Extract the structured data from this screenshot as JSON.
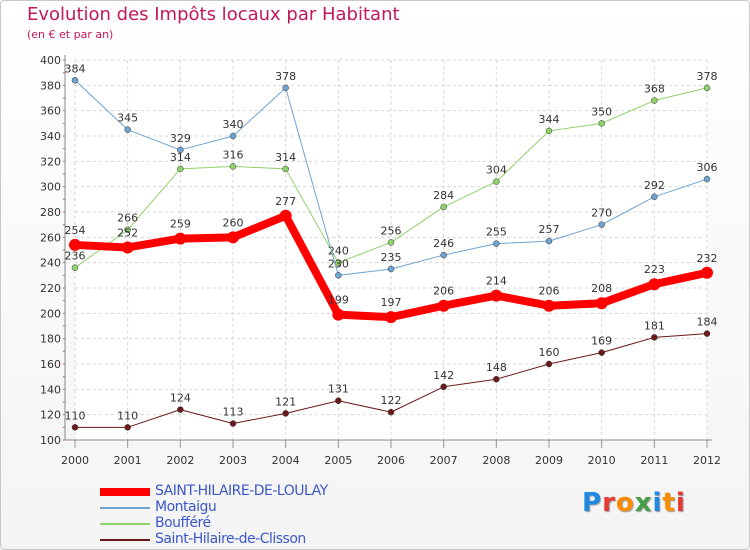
{
  "title": "Evolution des Impôts locaux par Habitant",
  "subtitle": "(en € et par an)",
  "logo": {
    "text": "Proxiti",
    "letters": [
      "P",
      "r",
      "o",
      "x",
      "i",
      "t",
      "i"
    ],
    "colors": [
      "#1e88e5",
      "#e53935",
      "#fb8c00",
      "#43a047",
      "#1e88e5",
      "#fb8c00",
      "#e53935"
    ]
  },
  "chart_data": {
    "type": "line",
    "title": "Evolution des Impôts locaux par Habitant",
    "subtitle": "(en € et par an)",
    "x": [
      "2000",
      "2001",
      "2002",
      "2003",
      "2004",
      "2005",
      "2006",
      "2007",
      "2008",
      "2009",
      "2010",
      "2011",
      "2012"
    ],
    "ylim": [
      100,
      400
    ],
    "yticks": [
      100,
      120,
      140,
      160,
      180,
      200,
      220,
      240,
      260,
      280,
      300,
      320,
      340,
      360,
      380,
      400
    ],
    "grid": true,
    "legend_position": "bottom-left",
    "series": [
      {
        "name": "Saint-Hilaire-de-Clisson",
        "color": "#6b1a1a",
        "width": 1,
        "values": [
          110,
          110,
          124,
          113,
          121,
          131,
          122,
          142,
          148,
          160,
          169,
          181,
          184
        ],
        "labels": [
          "110",
          "110",
          "124",
          "113",
          "121",
          "131",
          "122",
          "142",
          "148",
          "160",
          "169",
          "181",
          "184"
        ]
      },
      {
        "name": "Boufféré",
        "color": "#8fd16a",
        "width": 1,
        "values": [
          236,
          266,
          314,
          316,
          314,
          240,
          256,
          284,
          304,
          344,
          350,
          368,
          378
        ],
        "labels": [
          "236",
          "266",
          "314",
          "316",
          "314",
          "240",
          "256",
          "284",
          "304",
          "344",
          "350",
          "368",
          "378"
        ]
      },
      {
        "name": "Montaigu",
        "color": "#6fa3d0",
        "width": 1,
        "values": [
          384,
          345,
          329,
          340,
          378,
          230,
          235,
          246,
          255,
          257,
          270,
          292,
          306
        ],
        "labels": [
          "384",
          "345",
          "329",
          "340",
          "378",
          "230",
          "235",
          "246",
          "255",
          "257",
          "270",
          "292",
          "306"
        ]
      },
      {
        "name": "SAINT-HILAIRE-DE-LOULAY",
        "color": "#ff0000",
        "width": 8,
        "values": [
          254,
          252,
          259,
          260,
          277,
          199,
          197,
          206,
          214,
          206,
          208,
          223,
          232
        ],
        "labels": [
          "254",
          "252",
          "259",
          "260",
          "277",
          "199",
          "197",
          "206",
          "214",
          "206",
          "208",
          "223",
          "232"
        ]
      }
    ],
    "legend": [
      "SAINT-HILAIRE-DE-LOULAY",
      "Montaigu",
      "Boufféré",
      "Saint-Hilaire-de-Clisson"
    ]
  }
}
